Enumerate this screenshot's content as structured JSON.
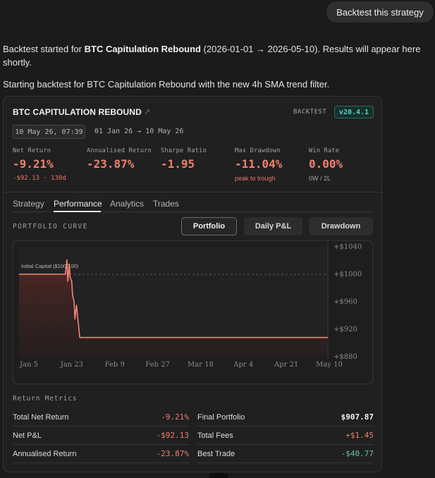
{
  "user_message": "Backtest this strategy",
  "assistant": {
    "msg1_prefix": "Backtest started for ",
    "msg1_strategy": "BTC Capitulation Rebound",
    "msg1_suffix": " (2026-01-01 → 2026-05-10). Results will appear here shortly.",
    "msg2": "Starting backtest for BTC Capitulation Rebound with the new 4h SMA trend filter."
  },
  "card": {
    "title": "BTC CAPITULATION REBOUND",
    "ext_icon": "external-link-icon",
    "backtest_label": "BACKTEST",
    "version": "v20.4.1",
    "timestamp": "10 May 26, 07:39",
    "range": "01 Jan 26 → 10 May 26",
    "metrics": [
      {
        "label": "Net Return",
        "value": "-9.21%",
        "sub": "-$92.13 · 130d"
      },
      {
        "label": "Annualised Return",
        "value": "-23.87%",
        "sub": ""
      },
      {
        "label": "Sharpe Ratio",
        "value": "-1.95",
        "sub": ""
      },
      {
        "label": "Max Drawdown",
        "value": "-11.04%",
        "sub": "peak to trough"
      },
      {
        "label": "Win Rate",
        "value": "0.00%",
        "sub": "0W / 2L"
      }
    ],
    "tabs": [
      "Strategy",
      "Performance",
      "Analytics",
      "Trades"
    ],
    "active_tab": "Performance",
    "curve_label": "PORTFOLIO CURVE",
    "view_buttons": [
      "Portfolio",
      "Daily P&L",
      "Drawdown"
    ],
    "active_view": "Portfolio",
    "return_metrics_label": "Return Metrics",
    "left_rows": [
      {
        "k": "Total Net Return",
        "v": "-9.21%",
        "tone": "neg"
      },
      {
        "k": "Net P&L",
        "v": "-$92.13",
        "tone": "neg"
      },
      {
        "k": "Annualised Return",
        "v": "-23.87%",
        "tone": "neg"
      }
    ],
    "right_rows": [
      {
        "k": "Final Portfolio",
        "v": "$907.87",
        "tone": "white"
      },
      {
        "k": "Total Fees",
        "v": "+$1.45",
        "tone": "neg"
      },
      {
        "k": "Best Trade",
        "v": "-$40.77",
        "tone": "pos"
      }
    ]
  },
  "chart_data": {
    "type": "line",
    "title": "",
    "xlabel": "",
    "ylabel": "",
    "x_ticks": [
      "Jan 5",
      "Jan 23",
      "Feb 9",
      "Feb 27",
      "Mar 18",
      "Apr 4",
      "Apr 21",
      "May 10"
    ],
    "y_ticks": [
      "+$1040",
      "+$1000",
      "+$960",
      "+$920",
      "+$880"
    ],
    "ylim": [
      880,
      1040
    ],
    "reference_line": {
      "label": "Initial Capital ($1000.00)",
      "value": 1000
    },
    "series": [
      {
        "name": "",
        "color": "#f2857a",
        "x": [
          "2026-01-01",
          "2026-01-20",
          "2026-01-21",
          "2026-01-21",
          "2026-01-22",
          "2026-01-22",
          "2026-01-23",
          "2026-01-23",
          "2026-01-24",
          "2026-01-24",
          "2026-01-25",
          "2026-01-26",
          "2026-05-10"
        ],
        "y": [
          1000,
          1000,
          1021,
          990,
          1015,
          995,
          990,
          970,
          960,
          935,
          955,
          908,
          908
        ]
      }
    ],
    "grid": false,
    "legend": "none"
  }
}
